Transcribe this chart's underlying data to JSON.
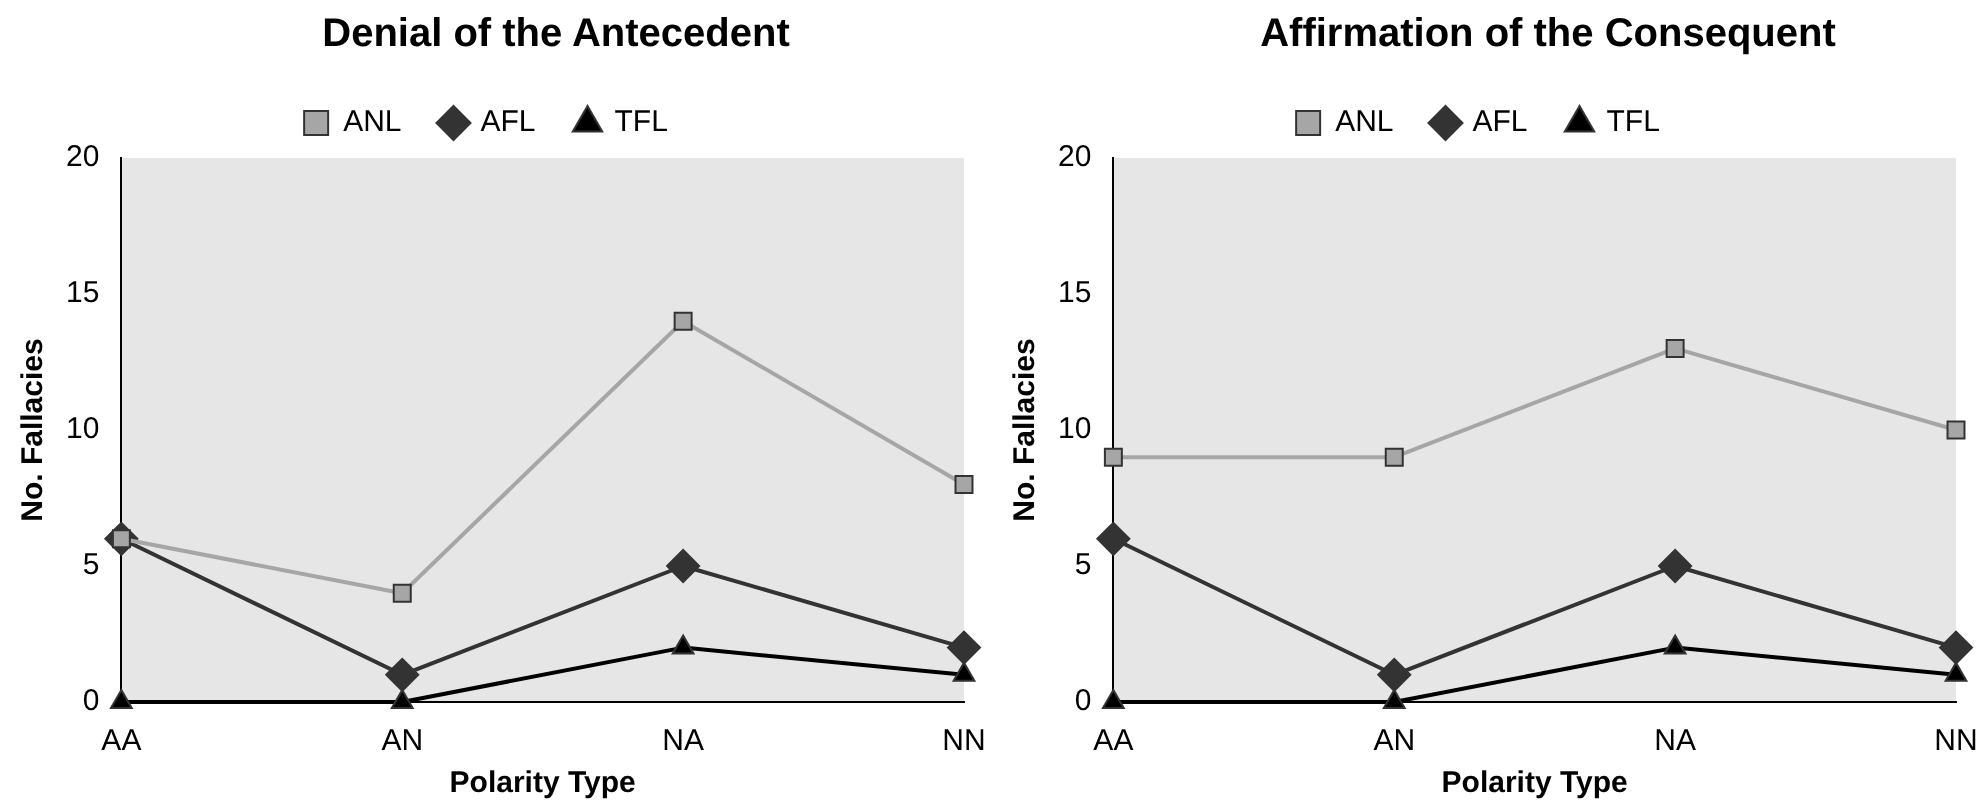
{
  "chart_data": [
    {
      "type": "line",
      "title": "Denial of the Antecedent",
      "xlabel": "Polarity Type",
      "ylabel": "No. Fallacies",
      "categories": [
        "AA",
        "AN",
        "NA",
        "NN"
      ],
      "ylim": [
        0,
        20
      ],
      "yticks": [
        0,
        5,
        10,
        15,
        20
      ],
      "grid": false,
      "legend": "top",
      "line_style": "solid",
      "series": [
        {
          "name": "ANL",
          "color": "#a6a6a6",
          "marker": "square",
          "values": [
            6,
            4,
            14,
            8
          ]
        },
        {
          "name": "AFL",
          "color": "#333333",
          "marker": "diamond",
          "values": [
            6,
            1,
            5,
            2
          ]
        },
        {
          "name": "TFL",
          "color": "#000000",
          "marker": "triangle",
          "values": [
            0,
            0,
            2,
            1
          ]
        }
      ]
    },
    {
      "type": "line",
      "title": "Affirmation of the Consequent",
      "xlabel": "Polarity Type",
      "ylabel": "No. Fallacies",
      "categories": [
        "AA",
        "AN",
        "NA",
        "NN"
      ],
      "ylim": [
        0,
        20
      ],
      "yticks": [
        0,
        5,
        10,
        15,
        20
      ],
      "grid": false,
      "legend": "top",
      "line_style": "solid",
      "series": [
        {
          "name": "ANL",
          "color": "#a6a6a6",
          "marker": "square",
          "values": [
            9,
            9,
            13,
            10
          ]
        },
        {
          "name": "AFL",
          "color": "#333333",
          "marker": "diamond",
          "values": [
            6,
            1,
            5,
            2
          ]
        },
        {
          "name": "TFL",
          "color": "#000000",
          "marker": "triangle",
          "values": [
            0,
            0,
            2,
            1
          ]
        }
      ]
    }
  ]
}
